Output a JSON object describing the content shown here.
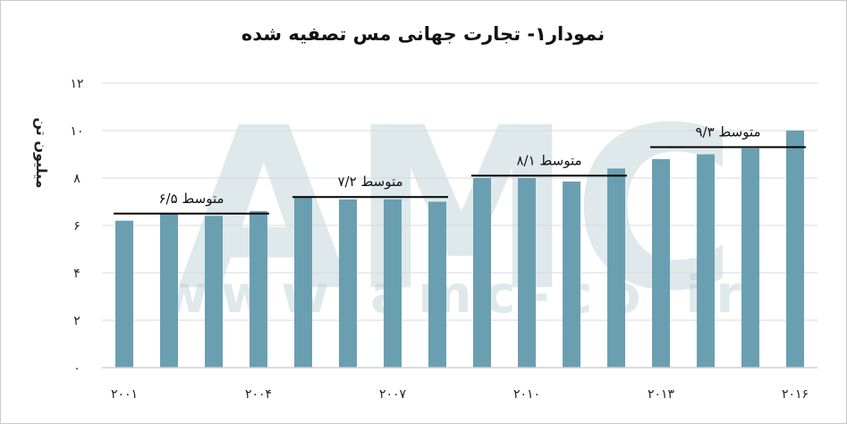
{
  "watermark": {
    "logo": "AMC",
    "url": "www.amc-co.ir"
  },
  "colors": {
    "bar": "#6a9fb2",
    "axis": "#d0d0d0",
    "grid": "#d9d9d9",
    "avg_line": "#000000"
  },
  "chart_data": {
    "type": "bar",
    "title": "نمودار۱- تجارت جهانی مس تصفیه شده",
    "ylabel": "میلیون تن",
    "xlabel": "",
    "ylim": [
      0,
      12
    ],
    "yticks": [
      0,
      2,
      4,
      6,
      8,
      10,
      12
    ],
    "ytick_labels": [
      "۰",
      "۲",
      "۴",
      "۶",
      "۸",
      "۱۰",
      "۱۲"
    ],
    "grid": "horizontal",
    "categories": [
      2001,
      2002,
      2003,
      2004,
      2005,
      2006,
      2007,
      2008,
      2009,
      2010,
      2011,
      2012,
      2013,
      2014,
      2015,
      2016
    ],
    "xtick_labels": [
      {
        "year": 2001,
        "label": "۲۰۰۱"
      },
      {
        "year": 2004,
        "label": "۲۰۰۴"
      },
      {
        "year": 2007,
        "label": "۲۰۰۷"
      },
      {
        "year": 2010,
        "label": "۲۰۱۰"
      },
      {
        "year": 2013,
        "label": "۲۰۱۳"
      },
      {
        "year": 2016,
        "label": "۲۰۱۶"
      }
    ],
    "values": [
      6.2,
      6.5,
      6.4,
      6.6,
      7.2,
      7.1,
      7.1,
      7.0,
      8.0,
      8.0,
      7.85,
      8.4,
      8.8,
      9.0,
      9.25,
      10.0
    ],
    "averages": [
      {
        "label": "متوسط ۶/۵",
        "value": 6.5,
        "from": 2001,
        "to": 2004
      },
      {
        "label": "متوسط ۷/۲",
        "value": 7.2,
        "from": 2005,
        "to": 2008
      },
      {
        "label": "متوسط ۸/۱",
        "value": 8.1,
        "from": 2009,
        "to": 2012
      },
      {
        "label": "متوسط ۹/۳",
        "value": 9.3,
        "from": 2013,
        "to": 2016
      }
    ]
  }
}
